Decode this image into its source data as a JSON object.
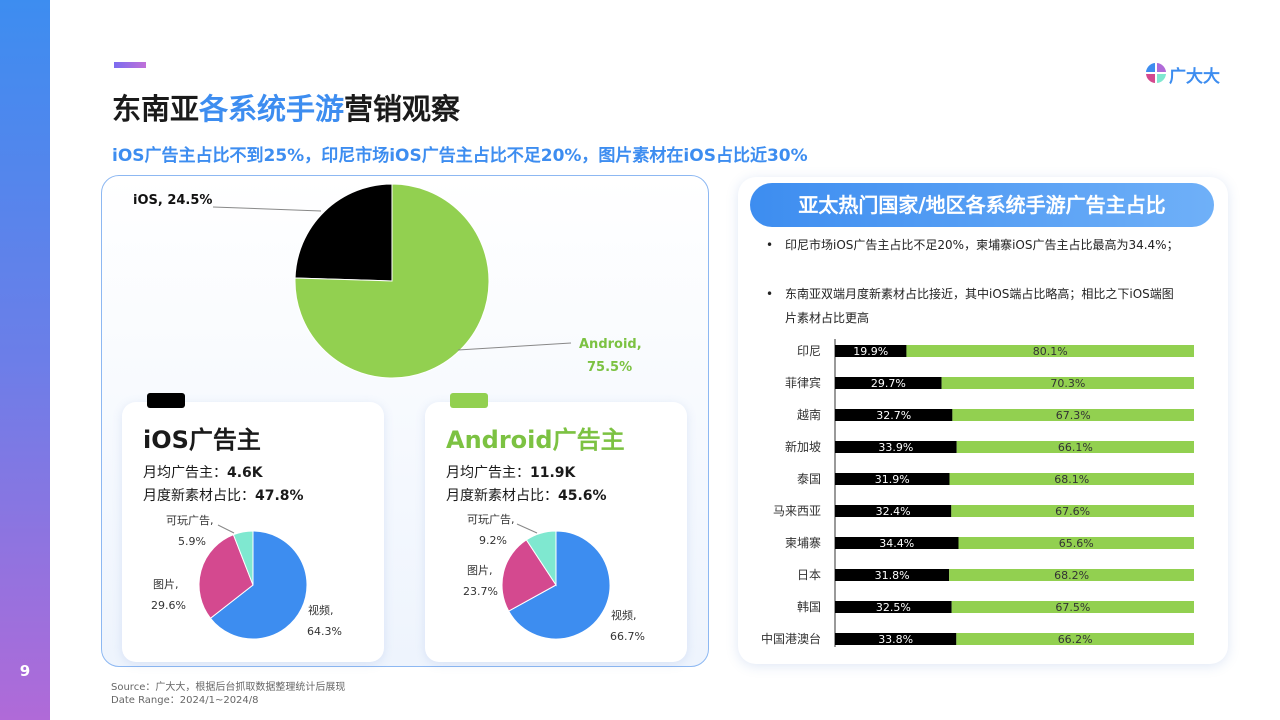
{
  "page_number": "9",
  "header": {
    "title_part1": "东南亚",
    "title_highlight": "各系统手游",
    "title_part2": "营销观察",
    "subtitle": "iOS广告主占比不到25%，印尼市场iOS广告主占比不足20%，图片素材在iOS占比近30%"
  },
  "logo": {
    "text": "广大大"
  },
  "colors": {
    "ios": "#000000",
    "android": "#92d050",
    "video": "#3d8df0",
    "image": "#d4498f",
    "playable": "#7fe8d0",
    "accent": "#3d8df0"
  },
  "ios_card": {
    "title": "iOS广告主",
    "line1_label": "月均广告主：",
    "line1_value": "4.6K",
    "line2_label": "月度新素材占比：",
    "line2_value": "47.8%"
  },
  "android_card": {
    "title": "Android广告主",
    "line1_label": "月均广告主：",
    "line1_value": "11.9K",
    "line2_label": "月度新素材占比：",
    "line2_value": "45.6%"
  },
  "right_panel": {
    "title": "亚太热门国家/地区各系统手游广告主占比",
    "bullets": [
      "印尼市场iOS广告主占比不足20%，柬埔寨iOS广告主占比最高为34.4%；",
      "东南亚双端月度新素材占比接近，其中iOS端占比略高；相比之下iOS端图片素材占比更高"
    ]
  },
  "source": {
    "line1": "Source：广大大，根据后台抓取数据整理统计后展现",
    "line2": "Date Range：2024/1~2024/8"
  },
  "chart_data": [
    {
      "type": "pie",
      "title": "",
      "slices": [
        {
          "name": "iOS",
          "value": 24.5,
          "label": "iOS, 24.5%",
          "color": "#000000"
        },
        {
          "name": "Android",
          "value": 75.5,
          "label_line1": "Android,",
          "label_line2": "75.5%",
          "color": "#92d050"
        }
      ]
    },
    {
      "type": "pie",
      "title": "iOS广告主",
      "slices": [
        {
          "name": "视频",
          "value": 64.3,
          "label_line1": "视频,",
          "label_line2": "64.3%",
          "color": "#3d8df0"
        },
        {
          "name": "图片",
          "value": 29.6,
          "label_line1": "图片,",
          "label_line2": "29.6%",
          "color": "#d4498f"
        },
        {
          "name": "可玩广告",
          "value": 5.9,
          "label_line1": "可玩广告,",
          "label_line2": "5.9%",
          "color": "#7fe8d0"
        }
      ]
    },
    {
      "type": "pie",
      "title": "Android广告主",
      "slices": [
        {
          "name": "视频",
          "value": 66.7,
          "label_line1": "视频,",
          "label_line2": "66.7%",
          "color": "#3d8df0"
        },
        {
          "name": "图片",
          "value": 23.7,
          "label_line1": "图片,",
          "label_line2": "23.7%",
          "color": "#d4498f"
        },
        {
          "name": "可玩广告",
          "value": 9.2,
          "label_line1": "可玩广告,",
          "label_line2": "9.2%",
          "color": "#7fe8d0"
        }
      ]
    },
    {
      "type": "bar",
      "orientation": "horizontal",
      "stacked": true,
      "title": "亚太热门国家/地区各系统手游广告主占比",
      "categories": [
        "印尼",
        "菲律宾",
        "越南",
        "新加坡",
        "泰国",
        "马来西亚",
        "柬埔寨",
        "日本",
        "韩国",
        "中国港澳台"
      ],
      "series": [
        {
          "name": "iOS",
          "color": "#000000",
          "values": [
            19.9,
            29.7,
            32.7,
            33.9,
            31.9,
            32.4,
            34.4,
            31.8,
            32.5,
            33.8
          ]
        },
        {
          "name": "Android",
          "color": "#92d050",
          "values": [
            80.1,
            70.3,
            67.3,
            66.1,
            68.1,
            67.6,
            65.6,
            68.2,
            67.5,
            66.2
          ]
        }
      ],
      "xlim": [
        0,
        100
      ]
    }
  ]
}
